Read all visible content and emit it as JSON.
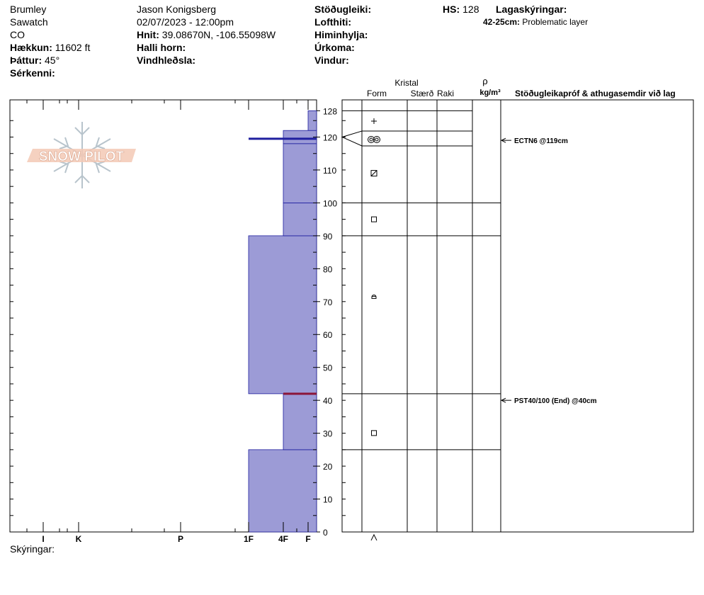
{
  "site": {
    "location": "Brumley",
    "range": "Sawatch",
    "state": "CO",
    "elevation_label": "Hækkun:",
    "elevation_value": "11602 ft",
    "aspect_label": "Þáttur:",
    "aspect_value": "45°",
    "features_label": "Sérkenni:"
  },
  "observer": {
    "name": "Jason Konigsberg",
    "datetime": "02/07/2023 - 12:00pm",
    "coords_label": "Hnit:",
    "coords_value": "39.08670N, -106.55098W",
    "slope_label": "Halli horn:",
    "wind_loading_label": "Vindhleðsla:"
  },
  "conditions": {
    "stability_label": "Stöðugleiki:",
    "air_temp_label": "Lofthiti:",
    "sky_label": "Himinhylja:",
    "precip_label": "Úrkoma:",
    "wind_label": "Vindur:",
    "hs_label": "HS:",
    "hs_value": "128",
    "layer_notes_label": "Lagaskýringar:",
    "layer_note_range": "42-25cm:",
    "layer_note_text": "Problematic layer"
  },
  "table_headers": {
    "crystal": "Kristal",
    "form": "Form",
    "size": "Stærð",
    "moisture": "Raki",
    "rho": "ρ",
    "density_unit": "kg/m³",
    "tests": "Stöðugleikapróf & athugasemdir við lag"
  },
  "footer": {
    "notes_label": "Skýringar:"
  },
  "logo_text": "SNOW PILOT",
  "colors": {
    "layer_fill": "#9c9bd6",
    "layer_edge": "#1f1f9f",
    "weak_layer": "#8b1538"
  },
  "chart_data": {
    "type": "snow-profile",
    "ylim": [
      0,
      128
    ],
    "y_ticks": [
      0,
      10,
      20,
      30,
      40,
      50,
      60,
      70,
      80,
      90,
      100,
      110,
      120,
      128
    ],
    "hardness_scale": [
      "I",
      "K",
      "P",
      "1F",
      "4F",
      "F"
    ],
    "layers": [
      {
        "bottom": 0,
        "top": 25,
        "hardness": "1F",
        "form": "depth-hoar"
      },
      {
        "bottom": 25,
        "top": 42,
        "hardness": "4F",
        "form": "faceted"
      },
      {
        "bottom": 42,
        "top": 90,
        "hardness": "1F",
        "form": "rounded-facets"
      },
      {
        "bottom": 90,
        "top": 100,
        "hardness": "4F",
        "form": "faceted"
      },
      {
        "bottom": 100,
        "top": 118,
        "hardness": "4F",
        "form": "mixed-faceted"
      },
      {
        "bottom": 118,
        "top": 122,
        "hardness": "4F",
        "form": "melt-forms"
      },
      {
        "bottom": 122,
        "top": 128,
        "hardness": "F",
        "form": "new-snow"
      }
    ],
    "thin_layers": [
      {
        "depth": 119.5,
        "hardness": "1F",
        "color": "#1f1f9f"
      },
      {
        "depth": 42,
        "hardness": "4F",
        "color": "#8b1538"
      }
    ],
    "tests": [
      {
        "depth": 119,
        "text": "ECTN6 @119cm"
      },
      {
        "depth": 40,
        "text": "PST40/100 (End) @40cm"
      }
    ]
  }
}
